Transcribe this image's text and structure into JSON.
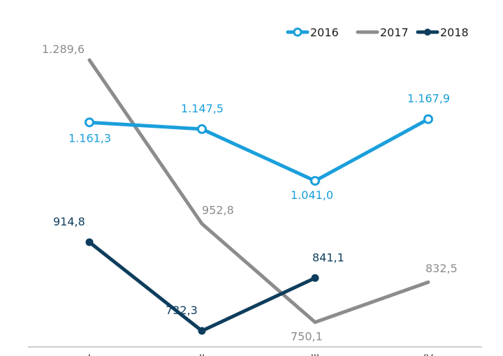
{
  "chart_data": {
    "type": "line",
    "categories": [
      "I",
      "II",
      "III",
      "IV"
    ],
    "series": [
      {
        "name": "2016",
        "values": [
          1161.3,
          1147.5,
          1041.0,
          1167.9
        ],
        "labels": [
          "1.161,3",
          "1.147,5",
          "1.041,0",
          "1.167,9"
        ],
        "color": "#1a9fdb",
        "marker": "circle"
      },
      {
        "name": "2017",
        "values": [
          1289.6,
          952.8,
          750.1,
          832.5
        ],
        "labels": [
          "1.289,6",
          "952,8",
          "750,1",
          "832,5"
        ],
        "color": "#8c8c8c",
        "marker": "none"
      },
      {
        "name": "2018",
        "values": [
          914.8,
          732.3,
          841.1,
          null
        ],
        "labels": [
          "914,8",
          "732,3",
          "841,1",
          ""
        ],
        "color": "#0d3d5c",
        "marker": "dot"
      }
    ],
    "legend": {
      "position": "top-right"
    },
    "grid": false,
    "xlabel": "",
    "ylabel": ""
  }
}
